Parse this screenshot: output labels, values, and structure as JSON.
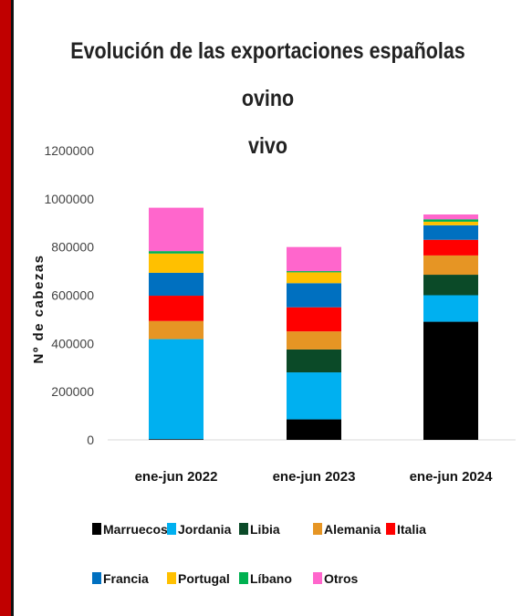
{
  "chart_data": {
    "type": "bar",
    "stacked": true,
    "title": "Evolución de las exportaciones españolas ovino vivo",
    "title_lines": [
      "Evolución de las exportaciones españolas ovino",
      "vivo"
    ],
    "ylabel": "Nº de cabezas",
    "xlabel": "",
    "ylim": [
      0,
      1200000
    ],
    "yticks": [
      "0",
      "200000",
      "400000",
      "600000",
      "800000",
      "1000000",
      "1200000"
    ],
    "ytick_values": [
      0,
      200000,
      400000,
      600000,
      800000,
      1000000,
      1200000
    ],
    "categories": [
      "ene-jun 2022",
      "ene-jun 2023",
      "ene-jun 2024"
    ],
    "legend_position": "bottom",
    "series": [
      {
        "name": "Marruecos",
        "color": "#000000",
        "values": [
          3000,
          85000,
          490000
        ]
      },
      {
        "name": "Jordania",
        "color": "#00b0f0",
        "values": [
          415000,
          195000,
          110000
        ]
      },
      {
        "name": "Libia",
        "color": "#0b4a28",
        "values": [
          0,
          95000,
          85000
        ]
      },
      {
        "name": "Alemania",
        "color": "#e69524",
        "values": [
          75000,
          75000,
          80000
        ]
      },
      {
        "name": "Italia",
        "color": "#ff0000",
        "values": [
          105000,
          100000,
          65000
        ]
      },
      {
        "name": "Francia",
        "color": "#0070c0",
        "values": [
          95000,
          100000,
          60000
        ]
      },
      {
        "name": "Portugal",
        "color": "#ffc000",
        "values": [
          80000,
          45000,
          15000
        ]
      },
      {
        "name": "Líbano",
        "color": "#00b050",
        "values": [
          10000,
          5000,
          10000
        ]
      },
      {
        "name": "Otros",
        "color": "#ff66cc",
        "values": [
          180000,
          100000,
          20000
        ]
      }
    ]
  }
}
